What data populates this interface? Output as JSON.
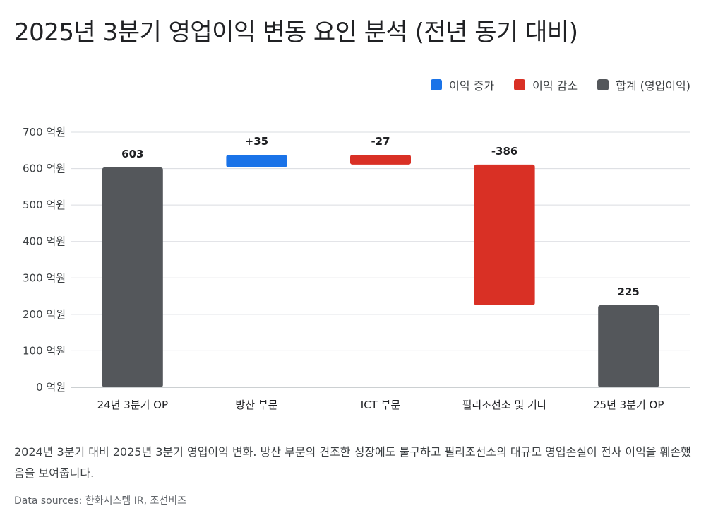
{
  "title": "2025년 3분기 영업이익 변동 요인 분석 (전년 동기 대비)",
  "legend": [
    {
      "label": "이익 증가",
      "color": "#1a73e8"
    },
    {
      "label": "이익 감소",
      "color": "#d93025"
    },
    {
      "label": "합계 (영업이익)",
      "color": "#54575b"
    }
  ],
  "chart_data": {
    "type": "bar",
    "subtype": "waterfall",
    "categories": [
      "24년 3분기 OP",
      "방산 부문",
      "ICT 부문",
      "필리조선소 및 기타",
      "25년 3분기 OP"
    ],
    "steps": [
      {
        "category": "24년 3분기 OP",
        "kind": "total",
        "value": 603,
        "label": "603"
      },
      {
        "category": "방산 부문",
        "kind": "increase",
        "value": 35,
        "label": "+35"
      },
      {
        "category": "ICT 부문",
        "kind": "decrease",
        "value": -27,
        "label": "-27"
      },
      {
        "category": "필리조선소 및 기타",
        "kind": "decrease",
        "value": -386,
        "label": "-386"
      },
      {
        "category": "25년 3분기 OP",
        "kind": "total",
        "value": 225,
        "label": "225"
      }
    ],
    "y_ticks": [
      "0 억원",
      "100 억원",
      "200 억원",
      "300 억원",
      "400 억원",
      "500 억원",
      "600 억원",
      "700 억원"
    ],
    "ylim": [
      0,
      700
    ],
    "grid": true,
    "legend_position": "top-right",
    "colors": {
      "increase": "#1a73e8",
      "decrease": "#d93025",
      "total": "#54575b",
      "grid": "#dadce0"
    }
  },
  "caption": "2024년 3분기 대비 2025년 3분기 영업이익 변화. 방산 부문의 견조한 성장에도 불구하고 필리조선소의 대규모 영업손실이 전사 이익을 훼손했음을 보여줍니다.",
  "sources": {
    "prefix": "Data sources: ",
    "links": [
      "한화시스템 IR",
      "조선비즈"
    ],
    "separator": ", "
  }
}
